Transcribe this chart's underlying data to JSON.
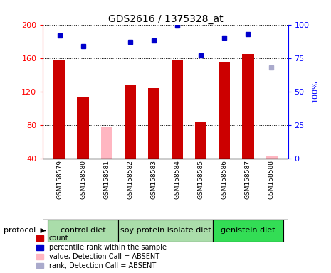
{
  "title": "GDS2616 / 1375328_at",
  "samples": [
    "GSM158579",
    "GSM158580",
    "GSM158581",
    "GSM158582",
    "GSM158583",
    "GSM158584",
    "GSM158585",
    "GSM158586",
    "GSM158587",
    "GSM158588"
  ],
  "counts": [
    157,
    113,
    0,
    128,
    124,
    157,
    84,
    155,
    165,
    0
  ],
  "ranks": [
    92,
    84,
    0,
    87,
    88,
    99,
    77,
    90,
    93,
    0
  ],
  "absent_values": [
    0,
    0,
    78,
    0,
    0,
    0,
    0,
    0,
    0,
    42
  ],
  "absent_ranks": [
    0,
    0,
    0,
    0,
    0,
    0,
    0,
    0,
    0,
    68
  ],
  "is_absent": [
    false,
    false,
    true,
    false,
    false,
    false,
    false,
    false,
    false,
    true
  ],
  "ylim_left": [
    40,
    200
  ],
  "ylim_right": [
    0,
    100
  ],
  "yticks_left": [
    40,
    80,
    120,
    160,
    200
  ],
  "yticks_right": [
    0,
    25,
    50,
    75,
    100
  ],
  "bar_color_present": "#CC0000",
  "bar_color_absent": "#FFB6C1",
  "rank_color_present": "#0000CC",
  "rank_color_absent": "#AAAACC",
  "bar_width": 0.5,
  "group_defs": [
    {
      "start": 0,
      "end": 2,
      "label": "control diet",
      "color": "#AADDAA"
    },
    {
      "start": 3,
      "end": 6,
      "label": "soy protein isolate diet",
      "color": "#AADDAA"
    },
    {
      "start": 7,
      "end": 9,
      "label": "genistein diet",
      "color": "#33DD55"
    }
  ],
  "bg_color": "#CCCCCC",
  "legend_items": [
    {
      "color": "#CC0000",
      "label": "count"
    },
    {
      "color": "#0000CC",
      "label": "percentile rank within the sample"
    },
    {
      "color": "#FFB6C1",
      "label": "value, Detection Call = ABSENT"
    },
    {
      "color": "#AAAACC",
      "label": "rank, Detection Call = ABSENT"
    }
  ]
}
